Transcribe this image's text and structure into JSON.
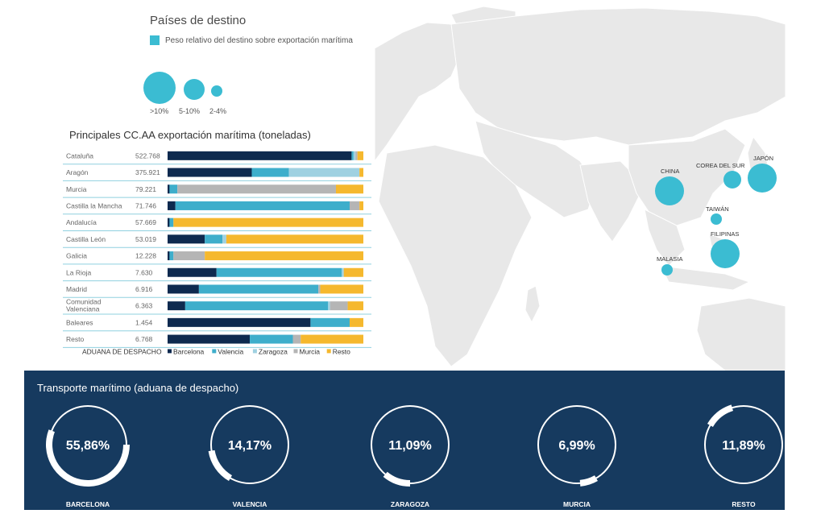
{
  "colors": {
    "barcelona": "#0e2a4f",
    "valencia": "#3eaecb",
    "zaragoza": "#9fd1e1",
    "murcia": "#b5b5b5",
    "resto": "#f5b82e",
    "bubble": "#3bbcd2",
    "panel": "#163a5f",
    "land": "#e8e8e8"
  },
  "legend": {
    "title": "Países de destino",
    "item": "Peso relativo del destino sobre exportación marítima",
    "sizes": [
      ">10%",
      "5-10%",
      "2-4%"
    ]
  },
  "map_labels": [
    {
      "id": "china",
      "label": "CHINA",
      "size": ">10%"
    },
    {
      "id": "korea",
      "label": "COREA DEL SUR",
      "size": "5-10%"
    },
    {
      "id": "japan",
      "label": "JAPÓN",
      "size": ">10%"
    },
    {
      "id": "taiwan",
      "label": "TAIWÁN",
      "size": "2-4%"
    },
    {
      "id": "philippines",
      "label": "FILIPINAS",
      "size": ">10%"
    },
    {
      "id": "malaysia",
      "label": "MALASIA",
      "size": "2-4%"
    }
  ],
  "chart_data": [
    {
      "type": "bar",
      "orientation": "horizontal-stacked-100",
      "title": "Principales CC.AA exportación marítima (toneladas)",
      "legend_title": "ADUANA DE DESPACHO",
      "legend": [
        "Barcelona",
        "Valencia",
        "Zaragoza",
        "Murcia",
        "Resto"
      ],
      "categories": [
        {
          "name": "Cataluña",
          "tonnes": "522.768"
        },
        {
          "name": "Aragón",
          "tonnes": "375.921"
        },
        {
          "name": "Murcia",
          "tonnes": "79.221"
        },
        {
          "name": "Castilla la Mancha",
          "tonnes": "71.746"
        },
        {
          "name": "Andalucía",
          "tonnes": "57.669"
        },
        {
          "name": "Castilla León",
          "tonnes": "53.019"
        },
        {
          "name": "Galicia",
          "tonnes": "12.228"
        },
        {
          "name": "La Rioja",
          "tonnes": "7.630"
        },
        {
          "name": "Madrid",
          "tonnes": "6.916"
        },
        {
          "name": "Comunidad Valenciana",
          "tonnes": "6.363"
        },
        {
          "name": "Baleares",
          "tonnes": "1.454"
        },
        {
          "name": "Resto",
          "tonnes": "6.768"
        }
      ],
      "series": [
        {
          "name": "Barcelona",
          "values": [
            94,
            43,
            1,
            4,
            1,
            19,
            1,
            25,
            16,
            9,
            73,
            42
          ]
        },
        {
          "name": "Valencia",
          "values": [
            1,
            19,
            4,
            89,
            2,
            9,
            2,
            64,
            61,
            73,
            20,
            22
          ]
        },
        {
          "name": "Zaragoza",
          "values": [
            1,
            36,
            0,
            0,
            0,
            2,
            0,
            1,
            0,
            1,
            0,
            0
          ]
        },
        {
          "name": "Murcia",
          "values": [
            1,
            0,
            81,
            5,
            0,
            0,
            16,
            0,
            1,
            9,
            0,
            4
          ]
        },
        {
          "name": "Resto",
          "values": [
            3,
            2,
            14,
            2,
            97,
            70,
            81,
            10,
            22,
            8,
            7,
            32
          ]
        }
      ]
    },
    {
      "type": "pie",
      "style": "ring-gauge",
      "title": "Transporte marítimo (aduana de despacho)",
      "items": [
        {
          "label": "BARCELONA",
          "display": "55,86%",
          "value": 55.86
        },
        {
          "label": "VALENCIA",
          "display": "14,17%",
          "value": 14.17
        },
        {
          "label": "ZARAGOZA",
          "display": "11,09%",
          "value": 11.09
        },
        {
          "label": "MURCIA",
          "display": "6,99%",
          "value": 6.99
        },
        {
          "label": "RESTO",
          "display": "11,89%",
          "value": 11.89
        }
      ]
    }
  ]
}
